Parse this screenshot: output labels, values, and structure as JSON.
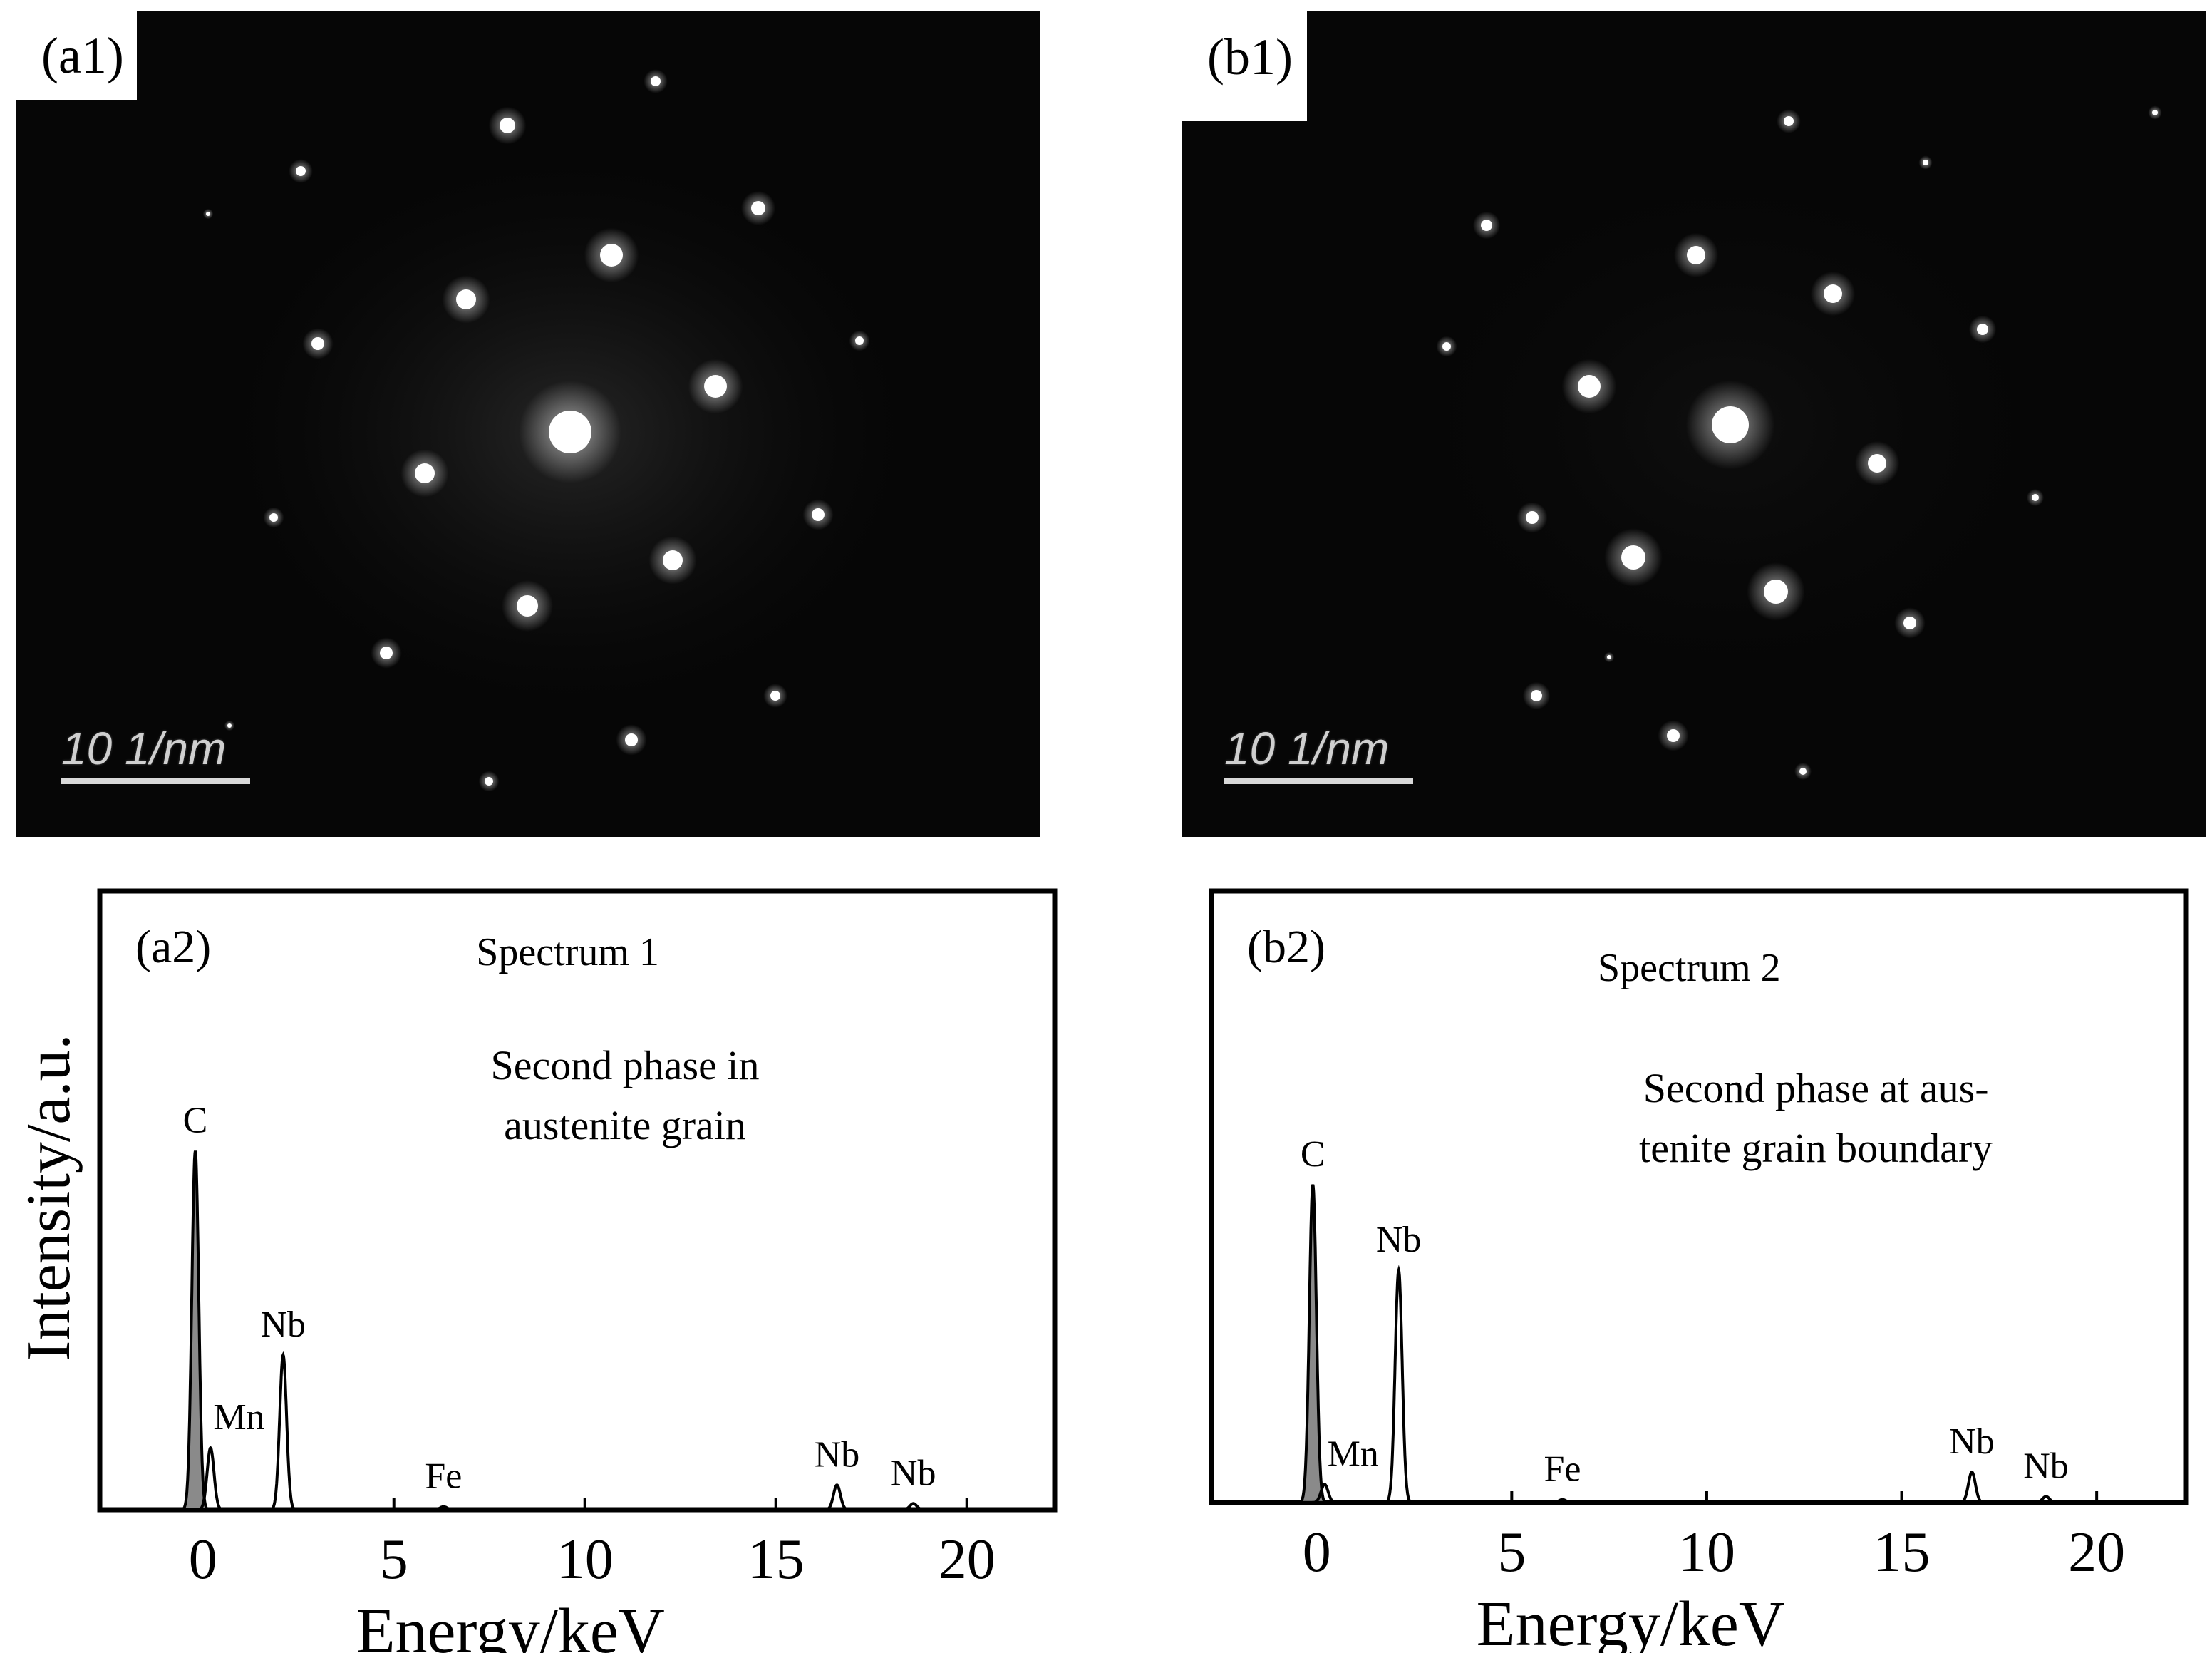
{
  "saed_panels": [
    {
      "id": "a1",
      "label": "(a1)",
      "scale_text": "10 1/nm"
    },
    {
      "id": "b1",
      "label": "(b1)",
      "scale_text": "10 1/nm"
    }
  ],
  "y_axis_label": "Intensity/a.u.",
  "chart_data": [
    {
      "type": "line",
      "panel_label": "(a2)",
      "title": "Spectrum 1",
      "annotation_lines": [
        "Second phase in",
        "austenite grain"
      ],
      "xlabel": "Energy/keV",
      "ylabel": "Intensity/a.u.",
      "xlim": [
        -2.7,
        22.3
      ],
      "ylim": [
        0,
        100
      ],
      "x_ticks": [
        0,
        5,
        10,
        15,
        20
      ],
      "grid": false,
      "peaks": [
        {
          "label": "C",
          "x": -0.2,
          "y": 58,
          "shaded": true
        },
        {
          "label": "Mn",
          "x": 0.2,
          "y": 10,
          "shaded": false
        },
        {
          "label": "Nb",
          "x": 2.1,
          "y": 25,
          "shaded": false
        },
        {
          "label": "Fe",
          "x": 6.3,
          "y": 0.5,
          "shaded": false
        },
        {
          "label": "Nb",
          "x": 16.6,
          "y": 4,
          "shaded": false
        },
        {
          "label": "Nb",
          "x": 18.6,
          "y": 1,
          "shaded": false
        }
      ]
    },
    {
      "type": "line",
      "panel_label": "(b2)",
      "title": "Spectrum 2",
      "annotation_lines": [
        "Second phase at aus-",
        "tenite grain boundary"
      ],
      "xlabel": "Energy/keV",
      "ylabel": "",
      "xlim": [
        -2.7,
        22.3
      ],
      "ylim": [
        0,
        100
      ],
      "x_ticks": [
        0,
        5,
        10,
        15,
        20
      ],
      "grid": false,
      "peaks": [
        {
          "label": "C",
          "x": -0.1,
          "y": 52,
          "shaded": true
        },
        {
          "label": "Mn",
          "x": 0.2,
          "y": 3,
          "shaded": false
        },
        {
          "label": "Nb",
          "x": 2.1,
          "y": 38,
          "shaded": false
        },
        {
          "label": "Fe",
          "x": 6.3,
          "y": 0.5,
          "shaded": false
        },
        {
          "label": "Nb",
          "x": 16.8,
          "y": 5,
          "shaded": false
        },
        {
          "label": "Nb",
          "x": 18.7,
          "y": 1,
          "shaded": false
        }
      ]
    }
  ]
}
